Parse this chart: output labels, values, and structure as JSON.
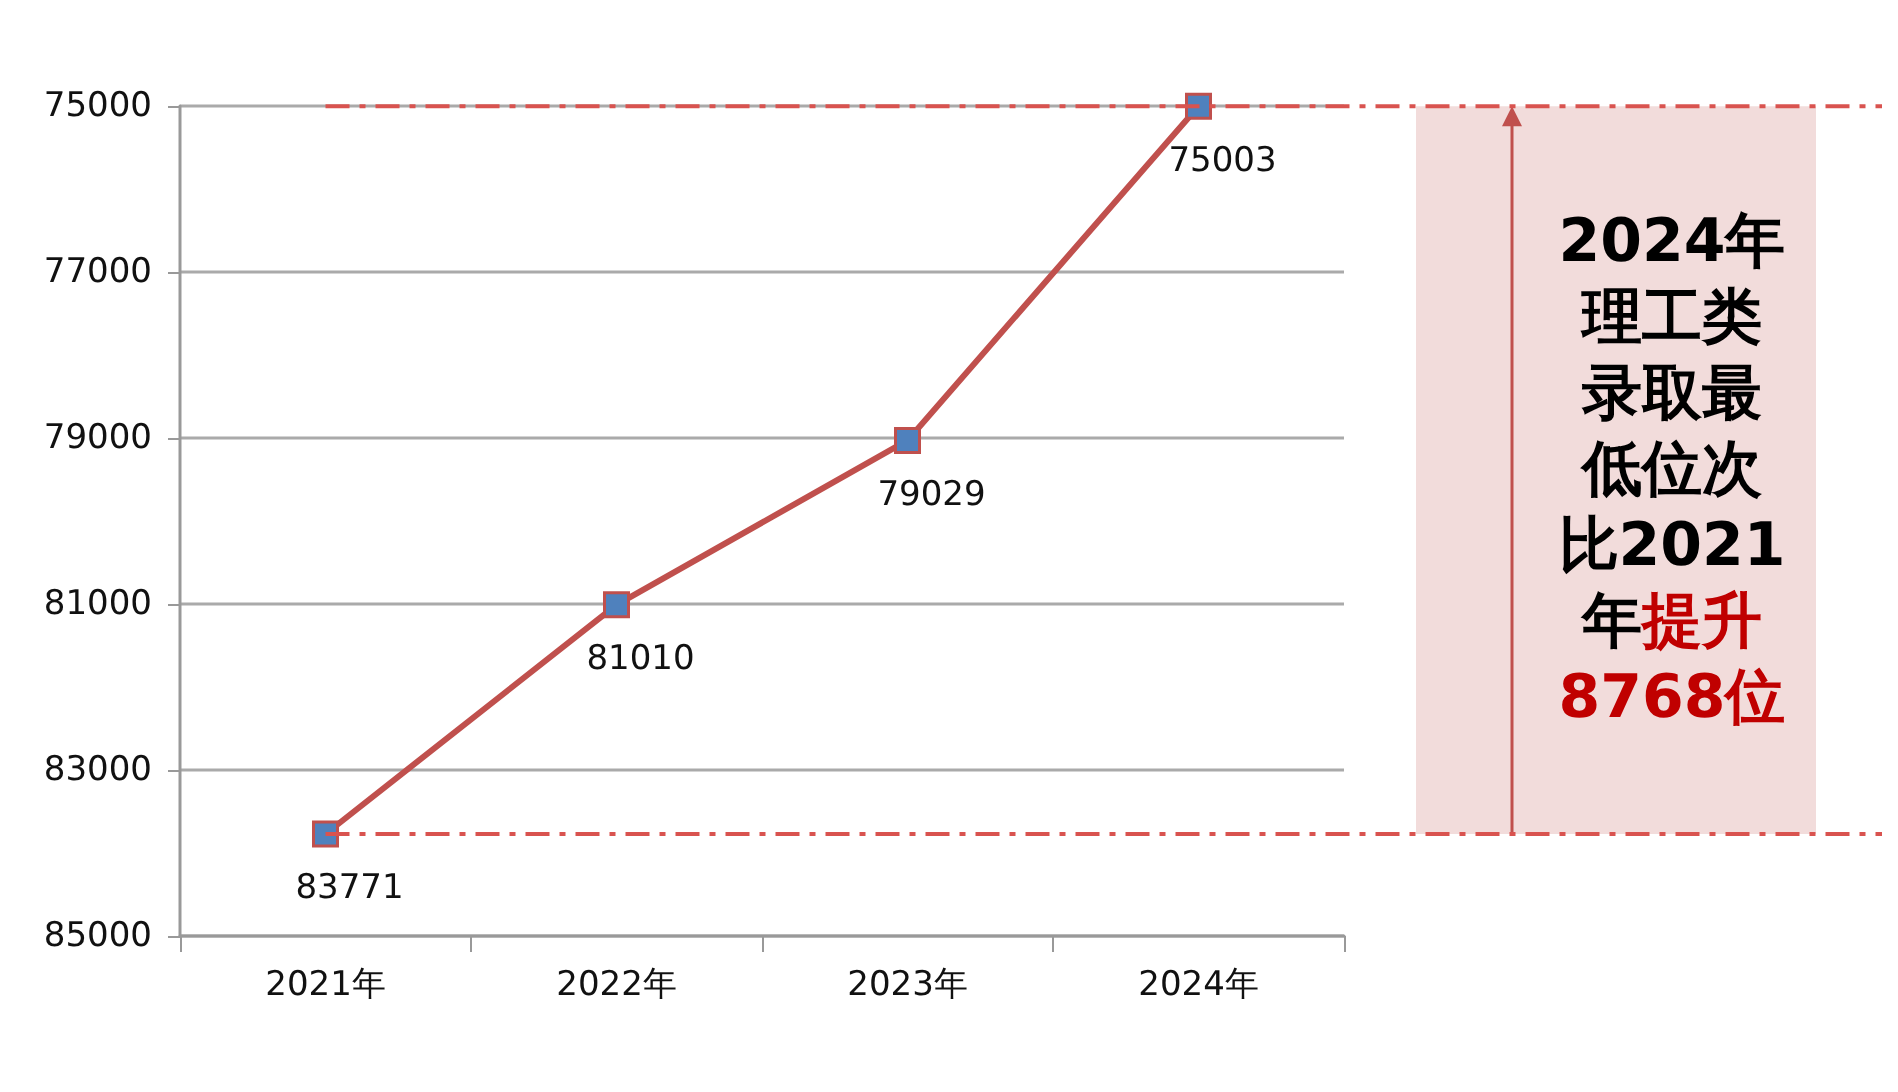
{
  "chart_data": {
    "type": "line",
    "categories": [
      "2021年",
      "2022年",
      "2023年",
      "2024年"
    ],
    "series": [
      {
        "color": "#c0504d",
        "values": [
          83771,
          81010,
          79029,
          75003
        ]
      }
    ],
    "ylim": [
      85000,
      75000
    ],
    "yticks": [
      75000,
      77000,
      79000,
      81000,
      83000,
      85000
    ],
    "grid": "y",
    "marker": "square",
    "line_style": "solid",
    "data_labels": true,
    "ref_lines": [
      {
        "axis": "y",
        "value": 75003,
        "color": "#d9534f",
        "line_style": "dashdot"
      },
      {
        "axis": "y",
        "value": 83771,
        "color": "#d9534f",
        "line_style": "dashdot"
      }
    ],
    "annotations": [
      "2024年理工类录取最低位次比2021年",
      "提升8768位"
    ]
  }
}
